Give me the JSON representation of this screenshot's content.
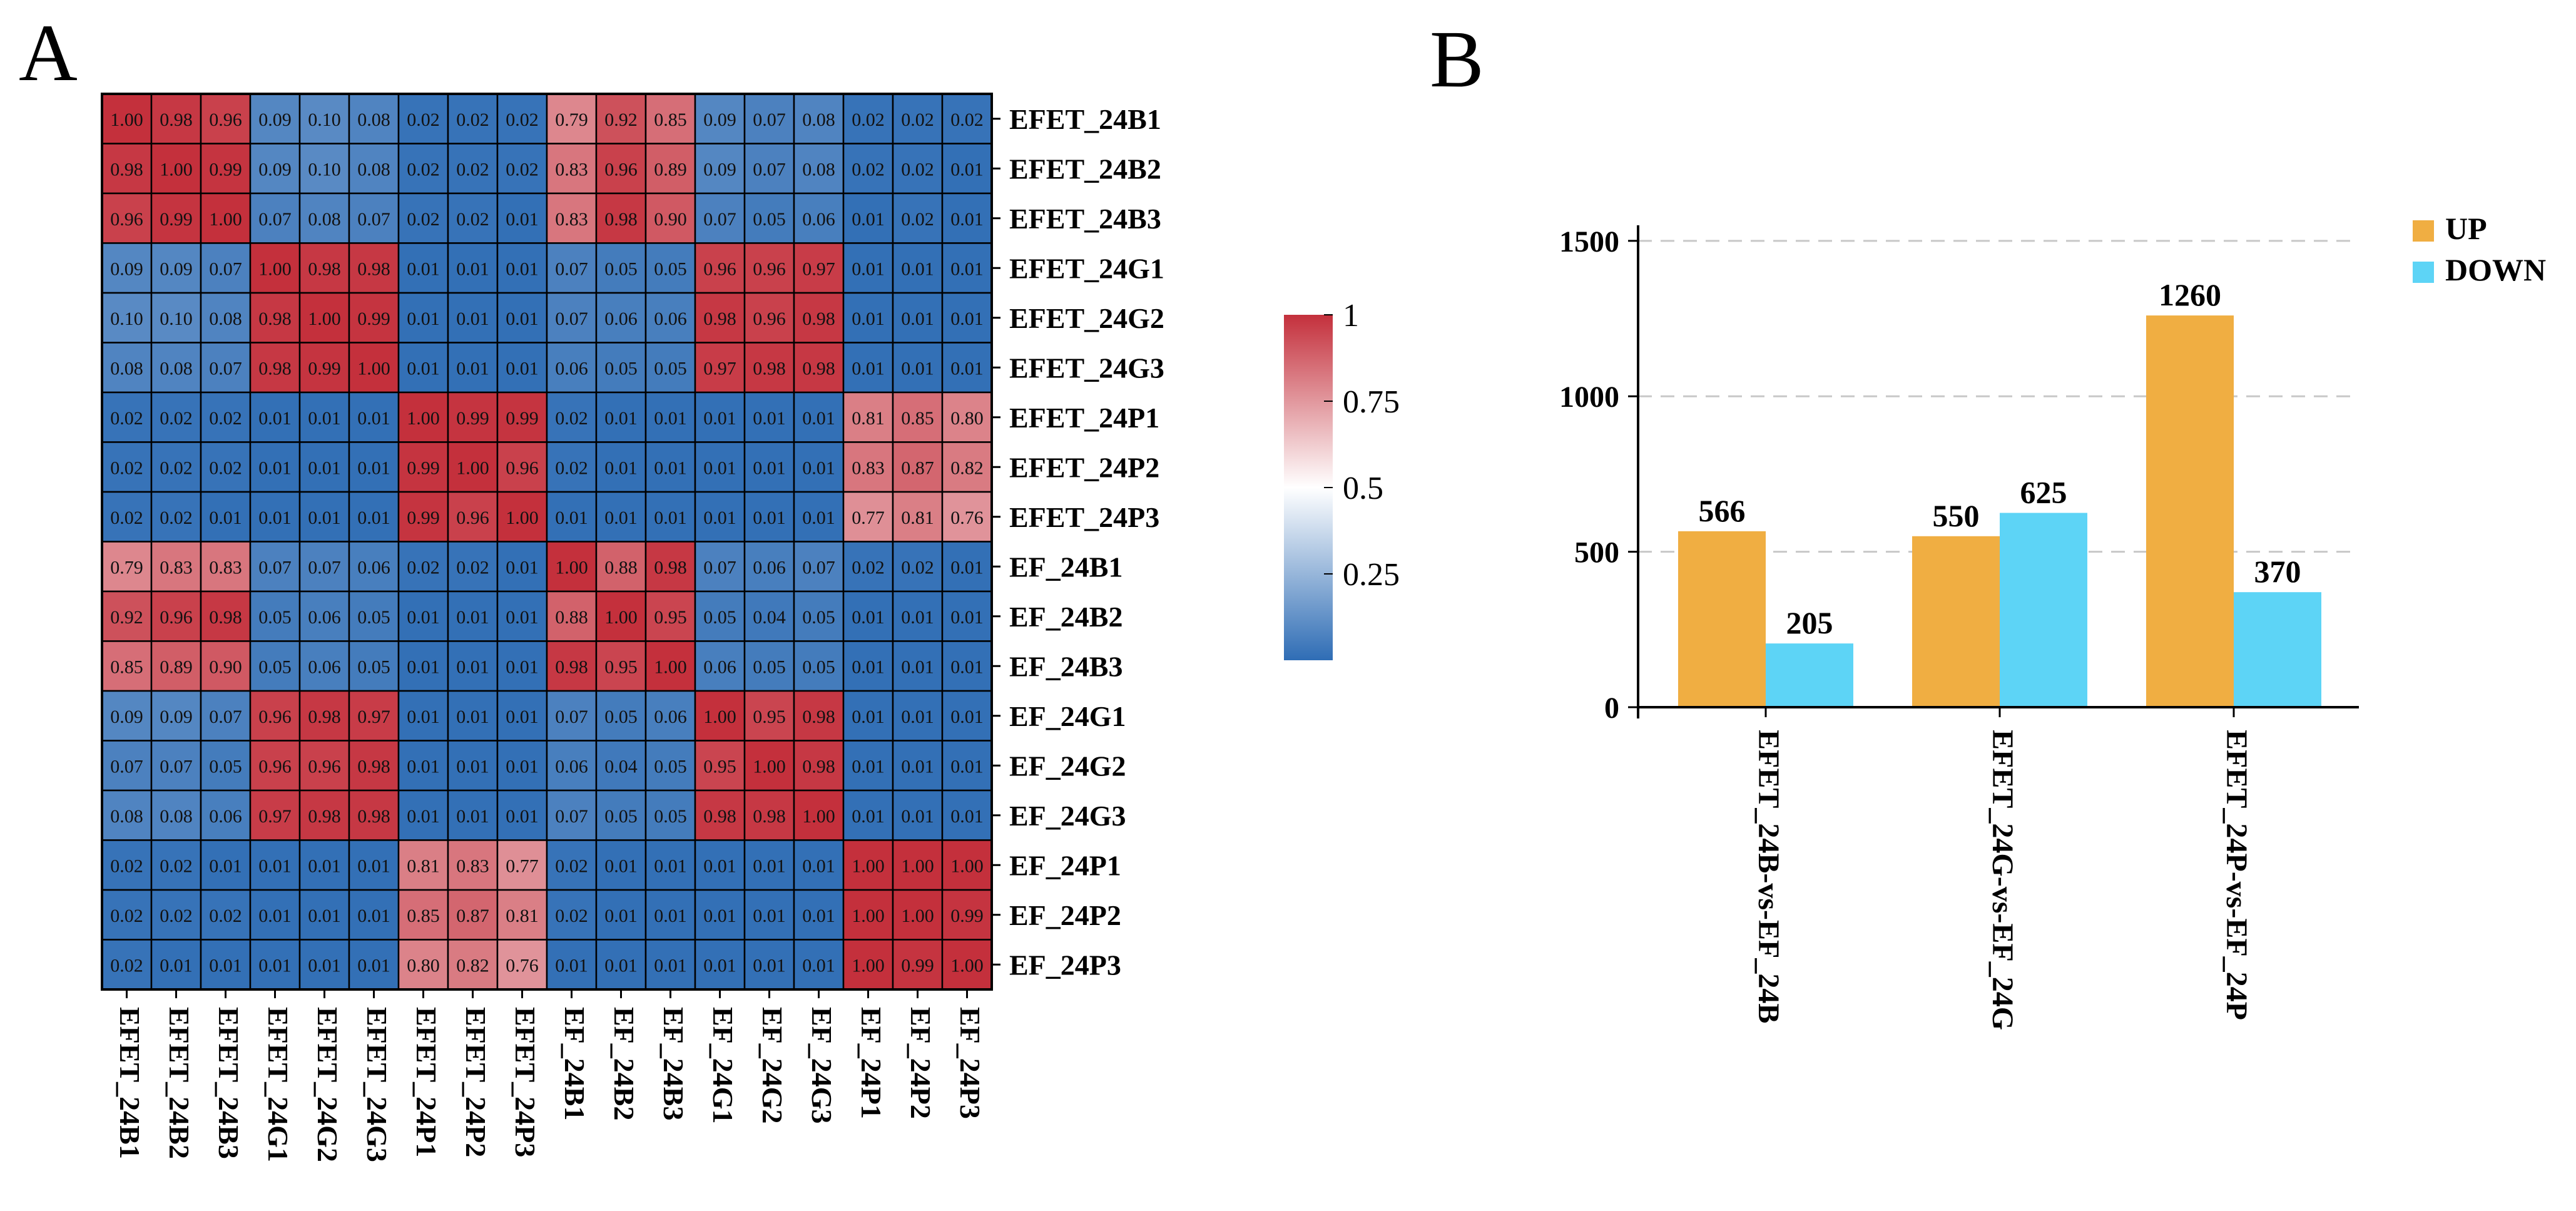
{
  "panels": {
    "a": "A",
    "b": "B"
  },
  "chart_data": [
    {
      "type": "heatmap",
      "title": "",
      "rows": [
        "EFET_24B1",
        "EFET_24B2",
        "EFET_24B3",
        "EFET_24G1",
        "EFET_24G2",
        "EFET_24G3",
        "EFET_24P1",
        "EFET_24P2",
        "EFET_24P3",
        "EF_24B1",
        "EF_24B2",
        "EF_24B3",
        "EF_24G1",
        "EF_24G2",
        "EF_24G3",
        "EF_24P1",
        "EF_24P2",
        "EF_24P3"
      ],
      "columns": [
        "EFET_24B1",
        "EFET_24B2",
        "EFET_24B3",
        "EFET_24G1",
        "EFET_24G2",
        "EFET_24G3",
        "EFET_24P1",
        "EFET_24P2",
        "EFET_24P3",
        "EF_24B1",
        "EF_24B2",
        "EF_24B3",
        "EF_24G1",
        "EF_24G2",
        "EF_24G3",
        "EF_24P1",
        "EF_24P2",
        "EF_24P3"
      ],
      "values": [
        [
          "1.00",
          "0.98",
          "0.96",
          "0.09",
          "0.10",
          "0.08",
          "0.02",
          "0.02",
          "0.02",
          "0.79",
          "0.92",
          "0.85",
          "0.09",
          "0.07",
          "0.08",
          "0.02",
          "0.02",
          "0.02"
        ],
        [
          "0.98",
          "1.00",
          "0.99",
          "0.09",
          "0.10",
          "0.08",
          "0.02",
          "0.02",
          "0.02",
          "0.83",
          "0.96",
          "0.89",
          "0.09",
          "0.07",
          "0.08",
          "0.02",
          "0.02",
          "0.01"
        ],
        [
          "0.96",
          "0.99",
          "1.00",
          "0.07",
          "0.08",
          "0.07",
          "0.02",
          "0.02",
          "0.01",
          "0.83",
          "0.98",
          "0.90",
          "0.07",
          "0.05",
          "0.06",
          "0.01",
          "0.02",
          "0.01"
        ],
        [
          "0.09",
          "0.09",
          "0.07",
          "1.00",
          "0.98",
          "0.98",
          "0.01",
          "0.01",
          "0.01",
          "0.07",
          "0.05",
          "0.05",
          "0.96",
          "0.96",
          "0.97",
          "0.01",
          "0.01",
          "0.01"
        ],
        [
          "0.10",
          "0.10",
          "0.08",
          "0.98",
          "1.00",
          "0.99",
          "0.01",
          "0.01",
          "0.01",
          "0.07",
          "0.06",
          "0.06",
          "0.98",
          "0.96",
          "0.98",
          "0.01",
          "0.01",
          "0.01"
        ],
        [
          "0.08",
          "0.08",
          "0.07",
          "0.98",
          "0.99",
          "1.00",
          "0.01",
          "0.01",
          "0.01",
          "0.06",
          "0.05",
          "0.05",
          "0.97",
          "0.98",
          "0.98",
          "0.01",
          "0.01",
          "0.01"
        ],
        [
          "0.02",
          "0.02",
          "0.02",
          "0.01",
          "0.01",
          "0.01",
          "1.00",
          "0.99",
          "0.99",
          "0.02",
          "0.01",
          "0.01",
          "0.01",
          "0.01",
          "0.01",
          "0.81",
          "0.85",
          "0.80"
        ],
        [
          "0.02",
          "0.02",
          "0.02",
          "0.01",
          "0.01",
          "0.01",
          "0.99",
          "1.00",
          "0.96",
          "0.02",
          "0.01",
          "0.01",
          "0.01",
          "0.01",
          "0.01",
          "0.83",
          "0.87",
          "0.82"
        ],
        [
          "0.02",
          "0.02",
          "0.01",
          "0.01",
          "0.01",
          "0.01",
          "0.99",
          "0.96",
          "1.00",
          "0.01",
          "0.01",
          "0.01",
          "0.01",
          "0.01",
          "0.01",
          "0.77",
          "0.81",
          "0.76"
        ],
        [
          "0.79",
          "0.83",
          "0.83",
          "0.07",
          "0.07",
          "0.06",
          "0.02",
          "0.02",
          "0.01",
          "1.00",
          "0.88",
          "0.98",
          "0.07",
          "0.06",
          "0.07",
          "0.02",
          "0.02",
          "0.01"
        ],
        [
          "0.92",
          "0.96",
          "0.98",
          "0.05",
          "0.06",
          "0.05",
          "0.01",
          "0.01",
          "0.01",
          "0.88",
          "1.00",
          "0.95",
          "0.05",
          "0.04",
          "0.05",
          "0.01",
          "0.01",
          "0.01"
        ],
        [
          "0.85",
          "0.89",
          "0.90",
          "0.05",
          "0.06",
          "0.05",
          "0.01",
          "0.01",
          "0.01",
          "0.98",
          "0.95",
          "1.00",
          "0.06",
          "0.05",
          "0.05",
          "0.01",
          "0.01",
          "0.01"
        ],
        [
          "0.09",
          "0.09",
          "0.07",
          "0.96",
          "0.98",
          "0.97",
          "0.01",
          "0.01",
          "0.01",
          "0.07",
          "0.05",
          "0.06",
          "1.00",
          "0.95",
          "0.98",
          "0.01",
          "0.01",
          "0.01"
        ],
        [
          "0.07",
          "0.07",
          "0.05",
          "0.96",
          "0.96",
          "0.98",
          "0.01",
          "0.01",
          "0.01",
          "0.06",
          "0.04",
          "0.05",
          "0.95",
          "1.00",
          "0.98",
          "0.01",
          "0.01",
          "0.01"
        ],
        [
          "0.08",
          "0.08",
          "0.06",
          "0.97",
          "0.98",
          "0.98",
          "0.01",
          "0.01",
          "0.01",
          "0.07",
          "0.05",
          "0.05",
          "0.98",
          "0.98",
          "1.00",
          "0.01",
          "0.01",
          "0.01"
        ],
        [
          "0.02",
          "0.02",
          "0.01",
          "0.01",
          "0.01",
          "0.01",
          "0.81",
          "0.83",
          "0.77",
          "0.02",
          "0.01",
          "0.01",
          "0.01",
          "0.01",
          "0.01",
          "1.00",
          "1.00",
          "1.00"
        ],
        [
          "0.02",
          "0.02",
          "0.02",
          "0.01",
          "0.01",
          "0.01",
          "0.85",
          "0.87",
          "0.81",
          "0.02",
          "0.01",
          "0.01",
          "0.01",
          "0.01",
          "0.01",
          "1.00",
          "1.00",
          "0.99"
        ],
        [
          "0.02",
          "0.01",
          "0.01",
          "0.01",
          "0.01",
          "0.01",
          "0.80",
          "0.82",
          "0.76",
          "0.01",
          "0.01",
          "0.01",
          "0.01",
          "0.01",
          "0.01",
          "1.00",
          "0.99",
          "1.00"
        ]
      ],
      "colorbar": {
        "ticks": [
          "1",
          "0.75",
          "0.5",
          "0.25"
        ],
        "tick_values": [
          1,
          0.75,
          0.5,
          0.25
        ],
        "range": [
          0,
          1
        ],
        "colors": {
          "low": "#2f6db5",
          "mid": "#ffffff",
          "high": "#c4303c"
        }
      }
    },
    {
      "type": "bar",
      "title": "",
      "xlabel": "",
      "ylabel": "",
      "categories": [
        "EFET_24B-vs-EF_24B",
        "EFET_24G-vs-EF_24G",
        "EFET_24P-vs-EF_24P"
      ],
      "series": [
        {
          "name": "UP",
          "color": "#f0ae42",
          "values": [
            566,
            550,
            1260
          ],
          "labels": [
            "566",
            "550",
            "1260"
          ]
        },
        {
          "name": "DOWN",
          "color": "#5dd4f6",
          "values": [
            205,
            625,
            370
          ],
          "labels": [
            "205",
            "625",
            "370"
          ]
        }
      ],
      "ylim": [
        0,
        1550
      ],
      "yticks": [
        0,
        500,
        1000,
        1500
      ],
      "ytick_labels": [
        "0",
        "500",
        "1000",
        "1500"
      ],
      "grid": "horizontal-dashed",
      "legend": "top-right"
    }
  ]
}
